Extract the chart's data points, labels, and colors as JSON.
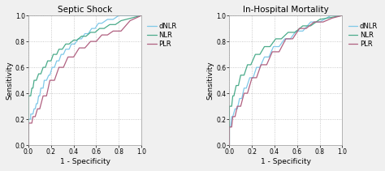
{
  "title_left": "Septic Shock",
  "title_right": "In-Hospital Mortality",
  "xlabel": "1 - Specificity",
  "ylabel": "Sensitivity",
  "xlim": [
    0.0,
    1.0
  ],
  "ylim": [
    0.0,
    1.0
  ],
  "xticks": [
    0.0,
    0.2,
    0.4,
    0.6,
    0.8,
    1.0
  ],
  "yticks": [
    0.0,
    0.2,
    0.4,
    0.6,
    0.8,
    1.0
  ],
  "colors": {
    "dNLR": "#7ec8e8",
    "NLR": "#4aab8a",
    "PLR": "#b06080"
  },
  "background_color": "#f0f0f0",
  "plot_bg": "#ffffff",
  "grid_color": "#bbbbbb",
  "septic_shock": {
    "dNLR_x": [
      0.0,
      0.0,
      0.02,
      0.02,
      0.04,
      0.05,
      0.06,
      0.07,
      0.08,
      0.09,
      0.1,
      0.11,
      0.13,
      0.14,
      0.16,
      0.18,
      0.19,
      0.21,
      0.23,
      0.25,
      0.27,
      0.29,
      0.31,
      0.33,
      0.36,
      0.38,
      0.41,
      0.44,
      0.47,
      0.5,
      0.53,
      0.56,
      0.59,
      0.62,
      0.65,
      0.7,
      0.75,
      0.8,
      1.0
    ],
    "dNLR_y": [
      0.0,
      0.2,
      0.2,
      0.24,
      0.24,
      0.28,
      0.28,
      0.32,
      0.32,
      0.38,
      0.38,
      0.44,
      0.44,
      0.5,
      0.5,
      0.54,
      0.54,
      0.6,
      0.6,
      0.65,
      0.65,
      0.7,
      0.7,
      0.74,
      0.74,
      0.78,
      0.78,
      0.82,
      0.82,
      0.86,
      0.86,
      0.9,
      0.9,
      0.94,
      0.94,
      0.97,
      0.97,
      1.0,
      1.0
    ],
    "NLR_x": [
      0.0,
      0.0,
      0.02,
      0.03,
      0.04,
      0.05,
      0.07,
      0.09,
      0.11,
      0.13,
      0.15,
      0.17,
      0.2,
      0.22,
      0.25,
      0.27,
      0.3,
      0.33,
      0.36,
      0.4,
      0.43,
      0.47,
      0.51,
      0.55,
      0.59,
      0.63,
      0.67,
      0.72,
      0.77,
      0.82,
      1.0
    ],
    "NLR_y": [
      0.0,
      0.38,
      0.38,
      0.44,
      0.44,
      0.5,
      0.5,
      0.55,
      0.55,
      0.6,
      0.6,
      0.65,
      0.65,
      0.7,
      0.7,
      0.74,
      0.74,
      0.78,
      0.78,
      0.81,
      0.81,
      0.84,
      0.84,
      0.87,
      0.87,
      0.9,
      0.9,
      0.93,
      0.93,
      0.96,
      1.0
    ],
    "PLR_x": [
      0.0,
      0.0,
      0.03,
      0.04,
      0.06,
      0.08,
      0.1,
      0.13,
      0.16,
      0.19,
      0.23,
      0.27,
      0.31,
      0.35,
      0.4,
      0.45,
      0.5,
      0.55,
      0.6,
      0.65,
      0.7,
      0.75,
      0.82,
      0.9,
      1.0
    ],
    "PLR_y": [
      0.0,
      0.17,
      0.17,
      0.22,
      0.22,
      0.28,
      0.28,
      0.38,
      0.38,
      0.5,
      0.5,
      0.6,
      0.6,
      0.68,
      0.68,
      0.75,
      0.75,
      0.8,
      0.8,
      0.85,
      0.85,
      0.88,
      0.88,
      0.96,
      1.0
    ]
  },
  "in_hospital": {
    "dNLR_x": [
      0.0,
      0.0,
      0.01,
      0.02,
      0.03,
      0.05,
      0.07,
      0.09,
      0.11,
      0.13,
      0.15,
      0.18,
      0.21,
      0.24,
      0.27,
      0.31,
      0.35,
      0.39,
      0.44,
      0.49,
      0.54,
      0.59,
      0.65,
      0.72,
      0.8,
      0.9,
      1.0
    ],
    "dNLR_y": [
      0.0,
      0.14,
      0.14,
      0.22,
      0.22,
      0.28,
      0.28,
      0.36,
      0.36,
      0.44,
      0.44,
      0.52,
      0.52,
      0.6,
      0.6,
      0.68,
      0.68,
      0.76,
      0.76,
      0.82,
      0.82,
      0.88,
      0.88,
      0.95,
      0.95,
      1.0,
      1.0
    ],
    "NLR_x": [
      0.0,
      0.0,
      0.02,
      0.03,
      0.04,
      0.06,
      0.08,
      0.1,
      0.13,
      0.16,
      0.19,
      0.23,
      0.27,
      0.31,
      0.36,
      0.41,
      0.46,
      0.52,
      0.58,
      0.65,
      0.72,
      0.8,
      1.0
    ],
    "NLR_y": [
      0.0,
      0.3,
      0.3,
      0.38,
      0.38,
      0.46,
      0.46,
      0.54,
      0.54,
      0.62,
      0.62,
      0.7,
      0.7,
      0.76,
      0.76,
      0.82,
      0.82,
      0.87,
      0.87,
      0.92,
      0.92,
      0.97,
      1.0
    ],
    "PLR_x": [
      0.0,
      0.0,
      0.02,
      0.03,
      0.05,
      0.07,
      0.1,
      0.13,
      0.16,
      0.2,
      0.24,
      0.28,
      0.33,
      0.38,
      0.44,
      0.5,
      0.56,
      0.62,
      0.68,
      0.75,
      0.83,
      0.91,
      1.0
    ],
    "PLR_y": [
      0.0,
      0.14,
      0.14,
      0.22,
      0.22,
      0.3,
      0.3,
      0.4,
      0.4,
      0.52,
      0.52,
      0.62,
      0.62,
      0.72,
      0.72,
      0.82,
      0.82,
      0.9,
      0.9,
      0.95,
      0.95,
      0.98,
      1.0
    ]
  },
  "line_width": 0.9,
  "title_fontsize": 7.5,
  "tick_fontsize": 5.5,
  "label_fontsize": 6.5,
  "legend_fontsize": 6.0
}
